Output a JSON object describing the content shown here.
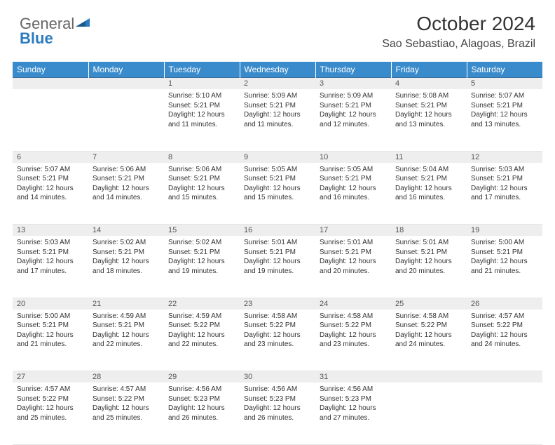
{
  "brand": {
    "part1": "General",
    "part2": "Blue"
  },
  "title": "October 2024",
  "location": "Sao Sebastiao, Alagoas, Brazil",
  "colors": {
    "header_bg": "#3a8bcc",
    "header_text": "#ffffff",
    "daynum_bg": "#eeeeee",
    "border_top": "#3a6f9c"
  },
  "dow": [
    "Sunday",
    "Monday",
    "Tuesday",
    "Wednesday",
    "Thursday",
    "Friday",
    "Saturday"
  ],
  "weeks": [
    [
      null,
      null,
      {
        "n": "1",
        "sr": "Sunrise: 5:10 AM",
        "ss": "Sunset: 5:21 PM",
        "d1": "Daylight: 12 hours",
        "d2": "and 11 minutes."
      },
      {
        "n": "2",
        "sr": "Sunrise: 5:09 AM",
        "ss": "Sunset: 5:21 PM",
        "d1": "Daylight: 12 hours",
        "d2": "and 11 minutes."
      },
      {
        "n": "3",
        "sr": "Sunrise: 5:09 AM",
        "ss": "Sunset: 5:21 PM",
        "d1": "Daylight: 12 hours",
        "d2": "and 12 minutes."
      },
      {
        "n": "4",
        "sr": "Sunrise: 5:08 AM",
        "ss": "Sunset: 5:21 PM",
        "d1": "Daylight: 12 hours",
        "d2": "and 13 minutes."
      },
      {
        "n": "5",
        "sr": "Sunrise: 5:07 AM",
        "ss": "Sunset: 5:21 PM",
        "d1": "Daylight: 12 hours",
        "d2": "and 13 minutes."
      }
    ],
    [
      {
        "n": "6",
        "sr": "Sunrise: 5:07 AM",
        "ss": "Sunset: 5:21 PM",
        "d1": "Daylight: 12 hours",
        "d2": "and 14 minutes."
      },
      {
        "n": "7",
        "sr": "Sunrise: 5:06 AM",
        "ss": "Sunset: 5:21 PM",
        "d1": "Daylight: 12 hours",
        "d2": "and 14 minutes."
      },
      {
        "n": "8",
        "sr": "Sunrise: 5:06 AM",
        "ss": "Sunset: 5:21 PM",
        "d1": "Daylight: 12 hours",
        "d2": "and 15 minutes."
      },
      {
        "n": "9",
        "sr": "Sunrise: 5:05 AM",
        "ss": "Sunset: 5:21 PM",
        "d1": "Daylight: 12 hours",
        "d2": "and 15 minutes."
      },
      {
        "n": "10",
        "sr": "Sunrise: 5:05 AM",
        "ss": "Sunset: 5:21 PM",
        "d1": "Daylight: 12 hours",
        "d2": "and 16 minutes."
      },
      {
        "n": "11",
        "sr": "Sunrise: 5:04 AM",
        "ss": "Sunset: 5:21 PM",
        "d1": "Daylight: 12 hours",
        "d2": "and 16 minutes."
      },
      {
        "n": "12",
        "sr": "Sunrise: 5:03 AM",
        "ss": "Sunset: 5:21 PM",
        "d1": "Daylight: 12 hours",
        "d2": "and 17 minutes."
      }
    ],
    [
      {
        "n": "13",
        "sr": "Sunrise: 5:03 AM",
        "ss": "Sunset: 5:21 PM",
        "d1": "Daylight: 12 hours",
        "d2": "and 17 minutes."
      },
      {
        "n": "14",
        "sr": "Sunrise: 5:02 AM",
        "ss": "Sunset: 5:21 PM",
        "d1": "Daylight: 12 hours",
        "d2": "and 18 minutes."
      },
      {
        "n": "15",
        "sr": "Sunrise: 5:02 AM",
        "ss": "Sunset: 5:21 PM",
        "d1": "Daylight: 12 hours",
        "d2": "and 19 minutes."
      },
      {
        "n": "16",
        "sr": "Sunrise: 5:01 AM",
        "ss": "Sunset: 5:21 PM",
        "d1": "Daylight: 12 hours",
        "d2": "and 19 minutes."
      },
      {
        "n": "17",
        "sr": "Sunrise: 5:01 AM",
        "ss": "Sunset: 5:21 PM",
        "d1": "Daylight: 12 hours",
        "d2": "and 20 minutes."
      },
      {
        "n": "18",
        "sr": "Sunrise: 5:01 AM",
        "ss": "Sunset: 5:21 PM",
        "d1": "Daylight: 12 hours",
        "d2": "and 20 minutes."
      },
      {
        "n": "19",
        "sr": "Sunrise: 5:00 AM",
        "ss": "Sunset: 5:21 PM",
        "d1": "Daylight: 12 hours",
        "d2": "and 21 minutes."
      }
    ],
    [
      {
        "n": "20",
        "sr": "Sunrise: 5:00 AM",
        "ss": "Sunset: 5:21 PM",
        "d1": "Daylight: 12 hours",
        "d2": "and 21 minutes."
      },
      {
        "n": "21",
        "sr": "Sunrise: 4:59 AM",
        "ss": "Sunset: 5:21 PM",
        "d1": "Daylight: 12 hours",
        "d2": "and 22 minutes."
      },
      {
        "n": "22",
        "sr": "Sunrise: 4:59 AM",
        "ss": "Sunset: 5:22 PM",
        "d1": "Daylight: 12 hours",
        "d2": "and 22 minutes."
      },
      {
        "n": "23",
        "sr": "Sunrise: 4:58 AM",
        "ss": "Sunset: 5:22 PM",
        "d1": "Daylight: 12 hours",
        "d2": "and 23 minutes."
      },
      {
        "n": "24",
        "sr": "Sunrise: 4:58 AM",
        "ss": "Sunset: 5:22 PM",
        "d1": "Daylight: 12 hours",
        "d2": "and 23 minutes."
      },
      {
        "n": "25",
        "sr": "Sunrise: 4:58 AM",
        "ss": "Sunset: 5:22 PM",
        "d1": "Daylight: 12 hours",
        "d2": "and 24 minutes."
      },
      {
        "n": "26",
        "sr": "Sunrise: 4:57 AM",
        "ss": "Sunset: 5:22 PM",
        "d1": "Daylight: 12 hours",
        "d2": "and 24 minutes."
      }
    ],
    [
      {
        "n": "27",
        "sr": "Sunrise: 4:57 AM",
        "ss": "Sunset: 5:22 PM",
        "d1": "Daylight: 12 hours",
        "d2": "and 25 minutes."
      },
      {
        "n": "28",
        "sr": "Sunrise: 4:57 AM",
        "ss": "Sunset: 5:22 PM",
        "d1": "Daylight: 12 hours",
        "d2": "and 25 minutes."
      },
      {
        "n": "29",
        "sr": "Sunrise: 4:56 AM",
        "ss": "Sunset: 5:23 PM",
        "d1": "Daylight: 12 hours",
        "d2": "and 26 minutes."
      },
      {
        "n": "30",
        "sr": "Sunrise: 4:56 AM",
        "ss": "Sunset: 5:23 PM",
        "d1": "Daylight: 12 hours",
        "d2": "and 26 minutes."
      },
      {
        "n": "31",
        "sr": "Sunrise: 4:56 AM",
        "ss": "Sunset: 5:23 PM",
        "d1": "Daylight: 12 hours",
        "d2": "and 27 minutes."
      },
      null,
      null
    ]
  ]
}
